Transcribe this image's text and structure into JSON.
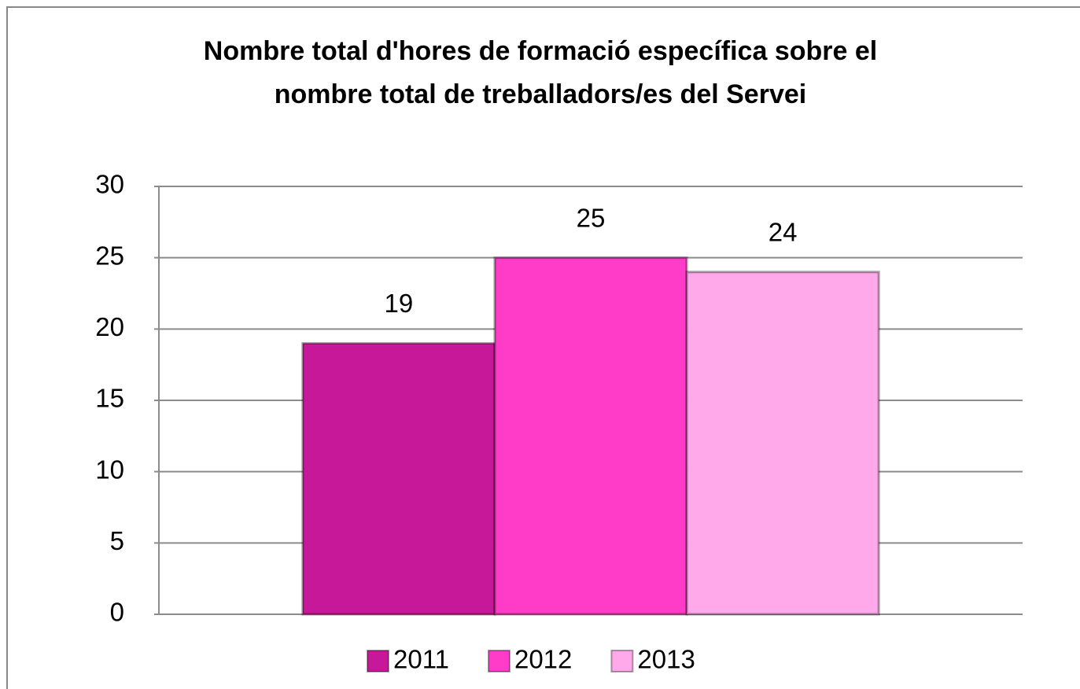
{
  "chart_data": {
    "type": "bar",
    "title": [
      "Nombre total d'hores de formació específica sobre el",
      "nombre total de treballadors/es del Servei"
    ],
    "categories": [
      null
    ],
    "series": [
      {
        "name": "2011",
        "color": "#c8189a",
        "values": [
          19
        ]
      },
      {
        "name": "2012",
        "color": "#ff3cc8",
        "values": [
          25
        ]
      },
      {
        "name": "2013",
        "color": "#ffa8ea",
        "values": [
          24
        ]
      }
    ],
    "ylim": [
      0,
      30
    ],
    "yticks": [
      0,
      5,
      10,
      15,
      20,
      25,
      30
    ],
    "grid": true,
    "legend": "bottom"
  }
}
